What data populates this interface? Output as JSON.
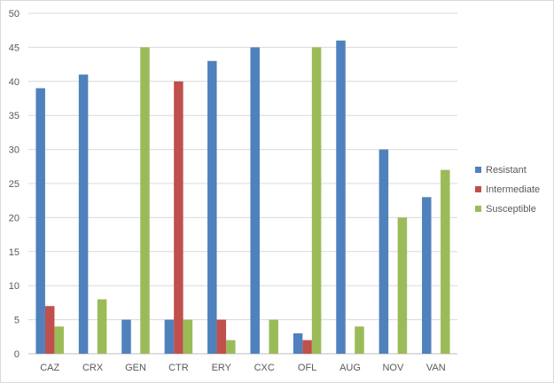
{
  "chart_data": {
    "type": "bar",
    "title": "",
    "xlabel": "",
    "ylabel": "",
    "ylim": [
      0,
      50
    ],
    "yticks": [
      0,
      5,
      10,
      15,
      20,
      25,
      30,
      35,
      40,
      45,
      50
    ],
    "grid": true,
    "legend_position": "right",
    "categories": [
      "CAZ",
      "CRX",
      "GEN",
      "CTR",
      "ERY",
      "CXC",
      "OFL",
      "AUG",
      "NOV",
      "VAN"
    ],
    "series": [
      {
        "name": "Resistant",
        "color": "#4f81bd",
        "values": [
          39,
          41,
          5,
          5,
          43,
          45,
          3,
          46,
          30,
          23
        ]
      },
      {
        "name": "Intermediate",
        "color": "#c0504d",
        "values": [
          7,
          0,
          0,
          40,
          5,
          0,
          2,
          0,
          0,
          0
        ]
      },
      {
        "name": "Susceptible",
        "color": "#9bbb59",
        "values": [
          4,
          8,
          45,
          5,
          2,
          5,
          45,
          4,
          20,
          27
        ]
      }
    ]
  }
}
